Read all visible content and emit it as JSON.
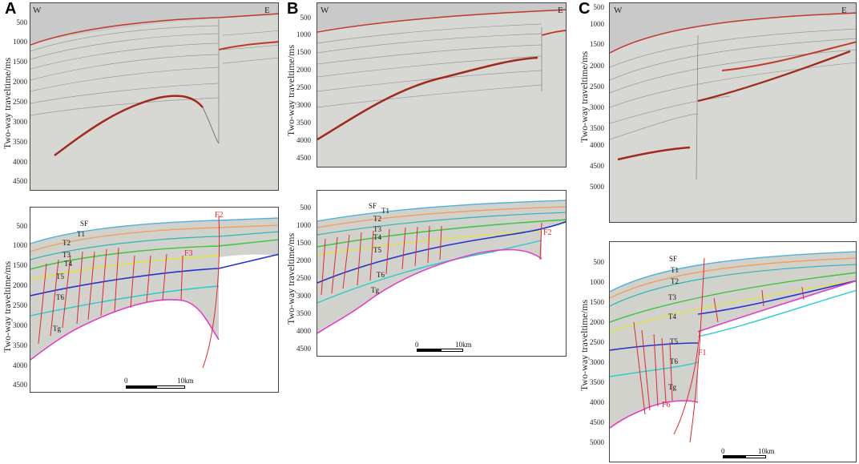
{
  "panels": [
    {
      "id": "A",
      "letter": "A",
      "upper": {
        "ylabel": "Two-way traveltime/ms",
        "ticks": [
          "500",
          "1000",
          "1500",
          "2000",
          "2500",
          "3000",
          "3500",
          "4000",
          "4500"
        ],
        "west": "W",
        "east": "E"
      },
      "lower": {
        "ylabel": "Two-way traveltime/ms",
        "ticks": [
          "500",
          "1000",
          "1500",
          "2000",
          "2500",
          "3000",
          "3500",
          "4000",
          "4500"
        ],
        "horizons": [
          "SF",
          "T1",
          "T2",
          "T3",
          "T4",
          "T5",
          "T6",
          "Tg"
        ],
        "faults": [
          "F2",
          "F3"
        ],
        "scale": {
          "start": "0",
          "end": "10km"
        }
      }
    },
    {
      "id": "B",
      "letter": "B",
      "upper": {
        "ylabel": "Two-way traveltime/ms",
        "ticks": [
          "500",
          "1000",
          "1500",
          "2000",
          "2500",
          "3000",
          "3500",
          "4000",
          "4500"
        ],
        "west": "W",
        "east": "E"
      },
      "lower": {
        "ylabel": "Two-way traveltime/ms",
        "ticks": [
          "500",
          "1000",
          "1500",
          "2000",
          "2500",
          "3000",
          "3500",
          "4000",
          "4500"
        ],
        "horizons": [
          "SF",
          "T1",
          "T2",
          "T3",
          "T4",
          "T5",
          "T6",
          "Tg"
        ],
        "faults": [
          "F2"
        ],
        "scale": {
          "start": "0",
          "end": "10km"
        }
      }
    },
    {
      "id": "C",
      "letter": "C",
      "upper": {
        "ylabel": "Two-way traveltime/ms",
        "ticks": [
          "500",
          "1000",
          "1500",
          "2000",
          "2500",
          "3000",
          "3500",
          "4000",
          "4500",
          "5000"
        ],
        "west": "W",
        "east": "E"
      },
      "lower": {
        "ylabel": "Two-way traveltime/ms",
        "ticks": [
          "500",
          "1000",
          "1500",
          "2000",
          "2500",
          "3000",
          "3500",
          "4000",
          "4500",
          "5000"
        ],
        "horizons": [
          "SF",
          "T1",
          "T2",
          "T3",
          "T4",
          "T5",
          "T6",
          "Tg"
        ],
        "faults": [
          "F1",
          "F6"
        ],
        "scale": {
          "start": "0",
          "end": "10km"
        }
      }
    }
  ],
  "colors": {
    "seafloor": "#c0392b",
    "SF": "#4fb3d9",
    "T1": "#f0a060",
    "T2": "#2fb5b5",
    "T3": "#3cc43c",
    "T4": "#e5e23a",
    "T5": "#2233cc",
    "T6": "#22cccc",
    "Tg": "#e040c8",
    "fault": "#e2262b"
  }
}
